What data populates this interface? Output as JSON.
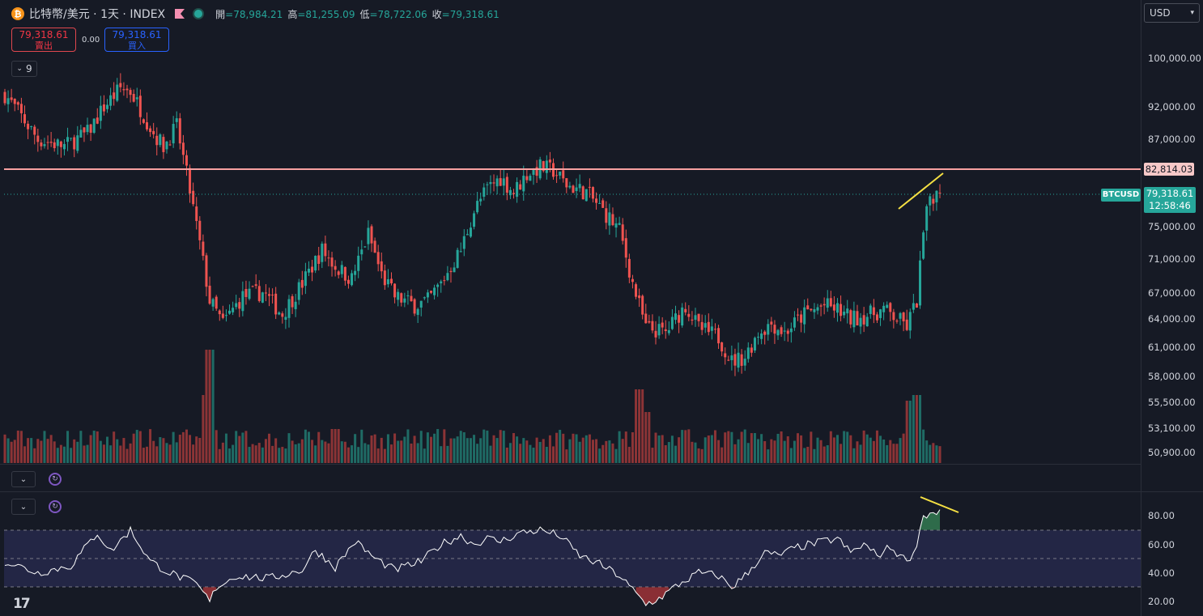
{
  "header": {
    "icon": "bitcoin-icon",
    "title": "比特幣/美元 · 1天 · INDEX",
    "ohlc": [
      {
        "label": "開",
        "value": "=78,984.21"
      },
      {
        "label": "高",
        "value": "=81,255.09"
      },
      {
        "label": "低",
        "value": "=78,722.06"
      },
      {
        "label": "收",
        "value": "=79,318.61"
      }
    ]
  },
  "trade": {
    "sell_price": "79,318.61",
    "sell_label": "賣出",
    "spread": "0.00",
    "buy_price": "79,318.61",
    "buy_label": "買入"
  },
  "indicators_count": "9",
  "currency": "USD",
  "price_axis": {
    "ticks": [
      "100,000.00",
      "92,000.00",
      "87,000.00",
      "75,000.00",
      "71,000.00",
      "67,000.00",
      "64,000.00",
      "61,000.00",
      "58,000.00",
      "55,500.00",
      "53,100.00",
      "50,900.00"
    ],
    "resistance_label": "82,814.03",
    "symbol_tag": "BTCUSD",
    "last_price": "79,318.61",
    "countdown": "12:58:46"
  },
  "rsi_axis": {
    "ticks": [
      "80.00",
      "60.00",
      "40.00",
      "20.00"
    ]
  },
  "colors": {
    "up": "#26a69a",
    "down": "#ef5350",
    "resistance": "#f7a1a1",
    "trendline": "#f5e043",
    "rsi": "#ffffff",
    "rsi_band": "#232645"
  },
  "chart_data": [
    {
      "type": "candlestick",
      "title": "比特幣/美元 · 1天 · INDEX",
      "scale": "log",
      "ylim": [
        49500,
        104000
      ],
      "resistance": 82814.03,
      "last": 79318.61,
      "waypoints": [
        [
          0,
          94000
        ],
        [
          10,
          87000
        ],
        [
          18,
          86000
        ],
        [
          25,
          88000
        ],
        [
          30,
          92000
        ],
        [
          35,
          95000
        ],
        [
          38,
          94500
        ],
        [
          45,
          88000
        ],
        [
          48,
          86000
        ],
        [
          52,
          89000
        ],
        [
          55,
          82000
        ],
        [
          58,
          75000
        ],
        [
          62,
          66000
        ],
        [
          66,
          63500
        ],
        [
          72,
          66500
        ],
        [
          78,
          67000
        ],
        [
          84,
          64500
        ],
        [
          90,
          68000
        ],
        [
          96,
          72000
        ],
        [
          100,
          70000
        ],
        [
          105,
          68500
        ],
        [
          110,
          74000
        ],
        [
          114,
          69000
        ],
        [
          118,
          66500
        ],
        [
          124,
          65500
        ],
        [
          128,
          66000
        ],
        [
          132,
          68000
        ],
        [
          138,
          72000
        ],
        [
          142,
          77000
        ],
        [
          146,
          80000
        ],
        [
          150,
          81500
        ],
        [
          154,
          79500
        ],
        [
          158,
          82000
        ],
        [
          162,
          83000
        ],
        [
          166,
          82500
        ],
        [
          170,
          80500
        ],
        [
          176,
          79500
        ],
        [
          182,
          76500
        ],
        [
          186,
          74500
        ],
        [
          190,
          68000
        ],
        [
          194,
          63000
        ],
        [
          200,
          62500
        ],
        [
          206,
          65500
        ],
        [
          210,
          63000
        ],
        [
          216,
          62000
        ],
        [
          220,
          59500
        ],
        [
          224,
          60000
        ],
        [
          228,
          62500
        ],
        [
          232,
          63500
        ],
        [
          236,
          62500
        ],
        [
          242,
          64500
        ],
        [
          248,
          65500
        ],
        [
          252,
          65000
        ],
        [
          256,
          64000
        ],
        [
          262,
          64500
        ],
        [
          266,
          65000
        ],
        [
          270,
          64000
        ],
        [
          273,
          63200
        ],
        [
          276,
          66000
        ],
        [
          278,
          74000
        ],
        [
          280,
          79000
        ],
        [
          283,
          79318.61
        ]
      ],
      "volume_peaks": [
        [
          0,
          0.15
        ],
        [
          40,
          0.2
        ],
        [
          62,
          1.0
        ],
        [
          61,
          0.6
        ],
        [
          100,
          0.3
        ],
        [
          140,
          0.22
        ],
        [
          192,
          0.65
        ],
        [
          194,
          0.45
        ],
        [
          274,
          0.55
        ],
        [
          276,
          0.6
        ]
      ]
    },
    {
      "type": "line",
      "title": "RSI",
      "ylim": [
        15,
        92
      ],
      "bands": [
        30,
        50,
        70
      ],
      "waypoints": [
        [
          0,
          48
        ],
        [
          10,
          40
        ],
        [
          20,
          45
        ],
        [
          28,
          68
        ],
        [
          32,
          55
        ],
        [
          38,
          70
        ],
        [
          44,
          48
        ],
        [
          50,
          40
        ],
        [
          58,
          32
        ],
        [
          62,
          20
        ],
        [
          64,
          30
        ],
        [
          70,
          38
        ],
        [
          80,
          36
        ],
        [
          90,
          42
        ],
        [
          94,
          56
        ],
        [
          100,
          44
        ],
        [
          106,
          62
        ],
        [
          112,
          50
        ],
        [
          118,
          42
        ],
        [
          126,
          48
        ],
        [
          132,
          60
        ],
        [
          138,
          66
        ],
        [
          142,
          60
        ],
        [
          146,
          64
        ],
        [
          150,
          62
        ],
        [
          156,
          68
        ],
        [
          162,
          70
        ],
        [
          168,
          66
        ],
        [
          174,
          52
        ],
        [
          180,
          46
        ],
        [
          186,
          38
        ],
        [
          190,
          28
        ],
        [
          194,
          18
        ],
        [
          198,
          22
        ],
        [
          204,
          32
        ],
        [
          210,
          40
        ],
        [
          216,
          38
        ],
        [
          220,
          30
        ],
        [
          224,
          38
        ],
        [
          230,
          54
        ],
        [
          234,
          52
        ],
        [
          240,
          58
        ],
        [
          248,
          62
        ],
        [
          252,
          64
        ],
        [
          256,
          54
        ],
        [
          260,
          60
        ],
        [
          264,
          52
        ],
        [
          268,
          58
        ],
        [
          272,
          50
        ],
        [
          275,
          52
        ],
        [
          278,
          80
        ],
        [
          281,
          82
        ],
        [
          283,
          83
        ]
      ]
    }
  ]
}
